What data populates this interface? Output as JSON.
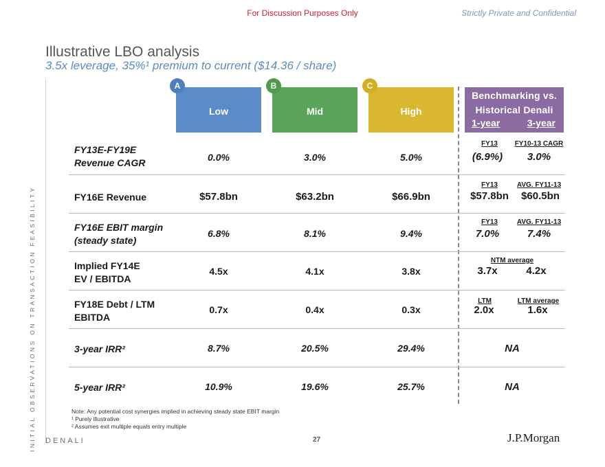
{
  "header": {
    "discussion": "For Discussion Purposes Only",
    "confidential": "Strictly Private and Confidential"
  },
  "title": "Illustrative LBO analysis",
  "subtitle": "3.5x leverage, 35%¹ premium to current ($14.36 / share)",
  "side_text": "INITIAL OBSERVATIONS ON TRANSACTION FEASIBILITY",
  "scenarios": [
    {
      "badge": "A",
      "label": "Low",
      "color": "#5b8bc8"
    },
    {
      "badge": "B",
      "label": "Mid",
      "color": "#5aa35a"
    },
    {
      "badge": "C",
      "label": "High",
      "color": "#d9b830"
    }
  ],
  "benchmark": {
    "title_line1": "Benchmarking vs.",
    "title_line2": "Historical Denali",
    "period1": "1-year",
    "period2": "3-year",
    "color": "#8c6aa2"
  },
  "rows": [
    {
      "label_line1": "FY13E-FY19E",
      "label_line2": "Revenue CAGR",
      "low": "0.0%",
      "mid": "3.0%",
      "high": "5.0%",
      "bench_head1": "FY13",
      "bench_head2": "FY10-13 CAGR",
      "bench_val1": "(6.9%)",
      "bench_val2": "3.0%"
    },
    {
      "label_line1": "FY16E Revenue",
      "low": "$57.8bn",
      "mid": "$63.2bn",
      "high": "$66.9bn",
      "bench_head1": "FY13",
      "bench_head2": "AVG. FY11-13",
      "bench_val1": "$57.8bn",
      "bench_val2": "$60.5bn"
    },
    {
      "label_line1": "FY16E EBIT margin",
      "label_line2": "(steady state)",
      "low": "6.8%",
      "mid": "8.1%",
      "high": "9.4%",
      "bench_head1": "FY13",
      "bench_head2": "AVG. FY11-13",
      "bench_val1": "7.0%",
      "bench_val2": "7.4%"
    },
    {
      "label_line1": "Implied FY14E",
      "label_line2": "EV / EBITDA",
      "low": "4.5x",
      "mid": "4.1x",
      "high": "3.8x",
      "bench_head_center": "NTM average",
      "bench_val1": "3.7x",
      "bench_val2": "4.2x"
    },
    {
      "label_line1": "FY18E Debt / LTM",
      "label_line2": "EBITDA",
      "low": "0.7x",
      "mid": "0.4x",
      "high": "0.3x",
      "bench_head1": "LTM",
      "bench_head2": "LTM average",
      "bench_val1": "2.0x",
      "bench_val2": "1.6x"
    },
    {
      "label_line1": "3-year IRR²",
      "low": "8.7%",
      "mid": "20.5%",
      "high": "29.4%",
      "bench_na": "NA"
    },
    {
      "label_line1": "5-year IRR²",
      "low": "10.9%",
      "mid": "19.6%",
      "high": "25.7%",
      "bench_na": "NA"
    }
  ],
  "notes": [
    "Note: Any potential cost synergies implied in achieving steady state EBIT margin",
    "¹ Purely illustrative",
    "² Assumes exit multiple equals entry multiple"
  ],
  "footer": {
    "left": "DENALI",
    "page": "27",
    "logo": "J.P.Morgan"
  }
}
